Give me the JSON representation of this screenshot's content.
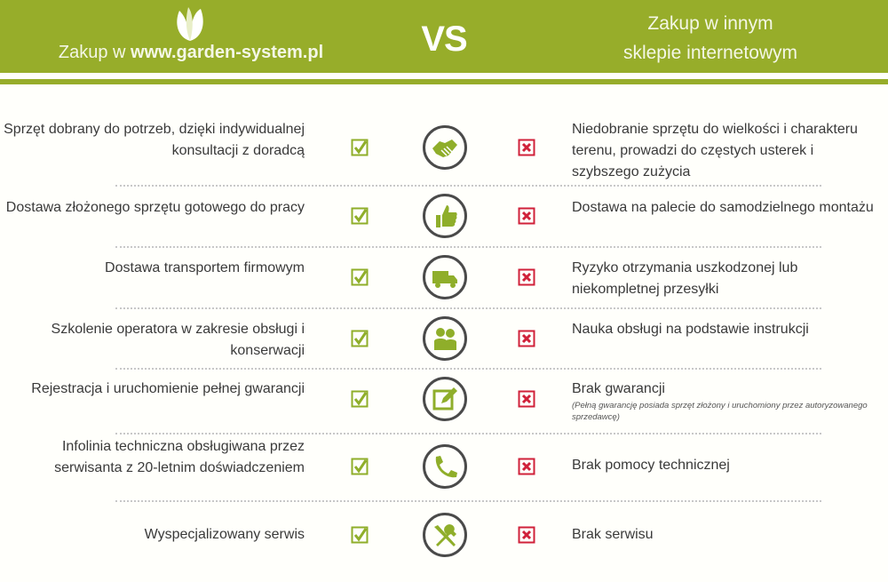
{
  "header": {
    "left_prefix": "Zakup w ",
    "left_site": "www.garden-system.pl",
    "vs": "VS",
    "right_line1": "Zakup w innym",
    "right_line2": "sklepie internetowym"
  },
  "colors": {
    "brand_green": "#97ad2a",
    "check_green": "#8fae2a",
    "cross_red": "#d0213a",
    "icon_ring": "#4a4a4a"
  },
  "rows": [
    {
      "left": "Sprzęt dobrany do potrzeb, dzięki indywidualnej konsultacji z doradcą",
      "icon": "handshake-icon",
      "right": "Niedobranie sprzętu do wielkości i charakteru terenu, prowadzi do częstych usterek i szybszego zużycia"
    },
    {
      "left": "Dostawa złożonego sprzętu gotowego do pracy",
      "icon": "thumbs-up-icon",
      "right": "Dostawa na palecie do samodzielnego montażu"
    },
    {
      "left": "Dostawa transportem firmowym",
      "icon": "truck-icon",
      "right": "Ryzyko otrzymania uszkodzonej lub niekompletnej przesyłki"
    },
    {
      "left": "Szkolenie operatora w zakresie obsługi i konserwacji",
      "icon": "people-icon",
      "right": "Nauka obsługi na podstawie instrukcji"
    },
    {
      "left": "Rejestracja i uruchomienie pełnej gwarancji",
      "icon": "edit-icon",
      "right": "Brak gwarancji",
      "note": "(Pełną gwarancję posiada sprzęt złożony i uruchomiony przez autoryzowanego sprzedawcę)"
    },
    {
      "left": "Infolinia techniczna obsługiwana przez serwisanta z 20-letnim doświadczeniem",
      "icon": "phone-icon",
      "right": "Brak pomocy technicznej"
    },
    {
      "left": "Wyspecjalizowany serwis",
      "icon": "tools-icon",
      "right": "Brak serwisu"
    }
  ]
}
